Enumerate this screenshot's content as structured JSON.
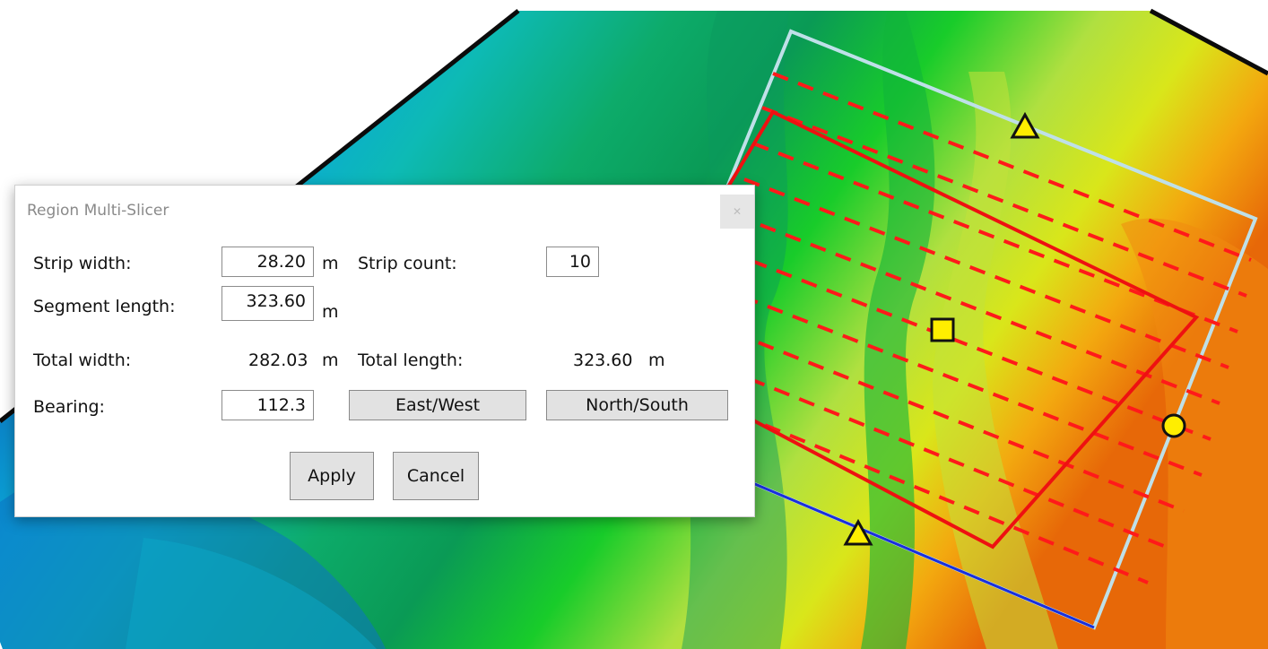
{
  "map": {
    "colors": {
      "strip_lines": "#ff1a1a",
      "region_outline": "#ee1111",
      "frame": "#bfe0e8",
      "baseline": "#1a2fdc",
      "markers": "#ffee00"
    },
    "markers": [
      "triangle-marker",
      "square-marker",
      "circle-marker"
    ]
  },
  "dialog": {
    "title": "Region Multi-Slicer",
    "close_icon": "close-icon",
    "strip_width": {
      "label": "Strip width:",
      "value": "28.20",
      "unit": "m"
    },
    "strip_count": {
      "label": "Strip count:",
      "value": "10"
    },
    "segment_length": {
      "label": "Segment length:",
      "value": "323.60",
      "unit": "m"
    },
    "total_width": {
      "label": "Total width:",
      "value": "282.03",
      "unit": "m"
    },
    "total_length": {
      "label": "Total length:",
      "value": "323.60",
      "unit": "m"
    },
    "bearing": {
      "label": "Bearing:",
      "value": "112.3"
    },
    "buttons": {
      "east_west": "East/West",
      "north_south": "North/South",
      "apply": "Apply",
      "cancel": "Cancel"
    }
  }
}
